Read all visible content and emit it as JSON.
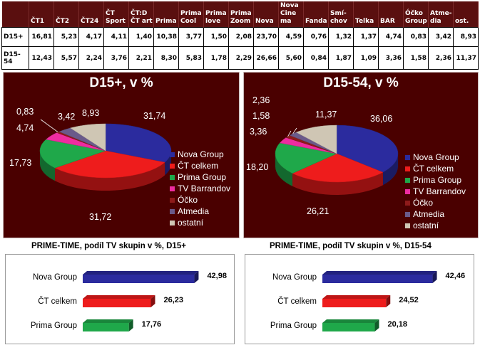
{
  "table": {
    "columns": [
      "ČT1",
      "ČT2",
      "ČT24",
      "ČT Sport",
      "ČT:D ČT art",
      "Prima",
      "Prima Cool",
      "Prima love",
      "Prima Zoom",
      "Nova",
      "Nova Cine ma",
      "Fanda",
      "Smí- chov",
      "Telka",
      "BAR",
      "Óčko Group",
      "Atme- dia",
      "ost."
    ],
    "rows": [
      {
        "label": "D15+",
        "values": [
          "16,81",
          "5,23",
          "4,17",
          "4,11",
          "1,40",
          "10,38",
          "3,77",
          "1,50",
          "2,08",
          "23,70",
          "4,59",
          "0,76",
          "1,32",
          "1,37",
          "4,74",
          "0,83",
          "3,42",
          "8,93"
        ]
      },
      {
        "label": "D15-54",
        "values": [
          "12,43",
          "5,57",
          "2,24",
          "3,76",
          "2,21",
          "8,30",
          "5,83",
          "1,78",
          "2,29",
          "26,66",
          "5,60",
          "0,84",
          "1,87",
          "1,09",
          "3,36",
          "1,58",
          "2,36",
          "11,37"
        ]
      }
    ]
  },
  "colors": {
    "Nova Group": "#2b2b9e",
    "ČT celkem": "#ee1c1c",
    "Prima Group": "#1fa84a",
    "TV Barrandov": "#ee2ca0",
    "Óčko": "#8e1a1a",
    "Atmedia": "#6a5a8a",
    "ostatní": "#cfc6b4"
  },
  "chart_data": [
    {
      "type": "pie",
      "title": "D15+, v %",
      "labels": [
        "Nova Group",
        "ČT celkem",
        "Prima Group",
        "TV Barrandov",
        "Óčko",
        "Atmedia",
        "ostatní"
      ],
      "values": [
        31.74,
        31.72,
        17.73,
        4.74,
        0.83,
        3.42,
        8.93
      ],
      "value_labels": [
        "31,74",
        "31,72",
        "17,73",
        "4,74",
        "0,83",
        "3,42",
        "8,93"
      ],
      "legend": "right"
    },
    {
      "type": "pie",
      "title": "D15-54, v %",
      "labels": [
        "Nova Group",
        "ČT celkem",
        "Prima Group",
        "TV Barrandov",
        "Óčko",
        "Atmedia",
        "ostatní"
      ],
      "values": [
        36.06,
        26.21,
        18.2,
        3.36,
        1.58,
        2.36,
        11.37
      ],
      "value_labels": [
        "36,06",
        "26,21",
        "18,20",
        "3,36",
        "1,58",
        "2,36",
        "11,37"
      ],
      "legend": "right"
    },
    {
      "type": "bar",
      "orientation": "horizontal",
      "title": "PRIME-TIME, podíl TV skupin v %, D15+",
      "categories": [
        "Nova Group",
        "ČT celkem",
        "Prima Group"
      ],
      "values": [
        42.98,
        26.23,
        17.76
      ],
      "value_labels": [
        "42,98",
        "26,23",
        "17,76"
      ]
    },
    {
      "type": "bar",
      "orientation": "horizontal",
      "title": "PRIME-TIME, podíl TV skupin v %, D15-54",
      "categories": [
        "Nova Group",
        "ČT celkem",
        "Prima Group"
      ],
      "values": [
        42.46,
        24.52,
        20.18
      ],
      "value_labels": [
        "42,46",
        "24,52",
        "20,18"
      ]
    }
  ]
}
